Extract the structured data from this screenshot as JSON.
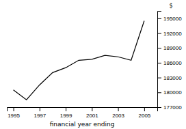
{
  "chart_data": {
    "type": "line",
    "x": [
      1995,
      1996,
      1997,
      1998,
      1999,
      2000,
      2001,
      2002,
      2003,
      2004,
      2005
    ],
    "values": [
      180500,
      178500,
      181500,
      184000,
      185000,
      186500,
      186700,
      187500,
      187200,
      186500,
      194500
    ],
    "color": "#000000",
    "xlim": [
      1994.5,
      2006.0
    ],
    "ylim": [
      177000,
      196500
    ],
    "xticks": [
      1995,
      1997,
      1999,
      2001,
      2003,
      2005
    ],
    "yticks": [
      177000,
      180000,
      183000,
      186000,
      189000,
      192000,
      195000
    ],
    "xlabel": "financial year ending",
    "annotations": [
      "$"
    ]
  }
}
